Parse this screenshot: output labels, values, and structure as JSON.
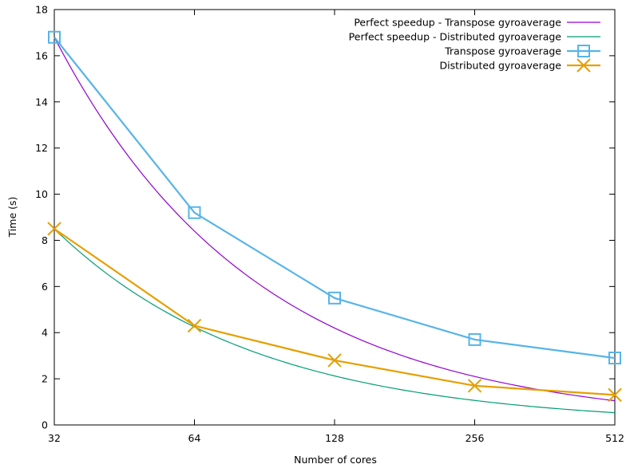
{
  "chart_data": {
    "type": "line",
    "title": "",
    "xlabel": "Number of cores",
    "ylabel": "Time (s)",
    "x_scale": "log2",
    "x": [
      32,
      64,
      128,
      256,
      512
    ],
    "x_tick_labels": [
      "32",
      "64",
      "128",
      "256",
      "512"
    ],
    "ylim": [
      0,
      18
    ],
    "y_ticks": [
      0,
      2,
      4,
      6,
      8,
      10,
      12,
      14,
      16,
      18
    ],
    "legend_position": "top-right",
    "grid": false,
    "series": [
      {
        "name": "Perfect speedup - Transpose gyroaverage",
        "color": "#9400d3",
        "style": "line",
        "ideal_base": 16.8,
        "values": [
          16.8,
          8.4,
          4.2,
          2.1,
          1.05
        ]
      },
      {
        "name": "Perfect speedup - Distributed gyroaverage",
        "color": "#009e73",
        "style": "line",
        "ideal_base": 8.5,
        "values": [
          8.5,
          4.25,
          2.125,
          1.0625,
          0.53
        ]
      },
      {
        "name": "Transpose gyroaverage",
        "color": "#56b4e9",
        "style": "linespoints",
        "marker": "square",
        "values": [
          16.8,
          9.2,
          5.5,
          3.7,
          2.9
        ]
      },
      {
        "name": "Distributed gyroaverage",
        "color": "#e69f00",
        "style": "linespoints",
        "marker": "x",
        "values": [
          8.5,
          4.3,
          2.8,
          1.7,
          1.3
        ]
      }
    ]
  }
}
